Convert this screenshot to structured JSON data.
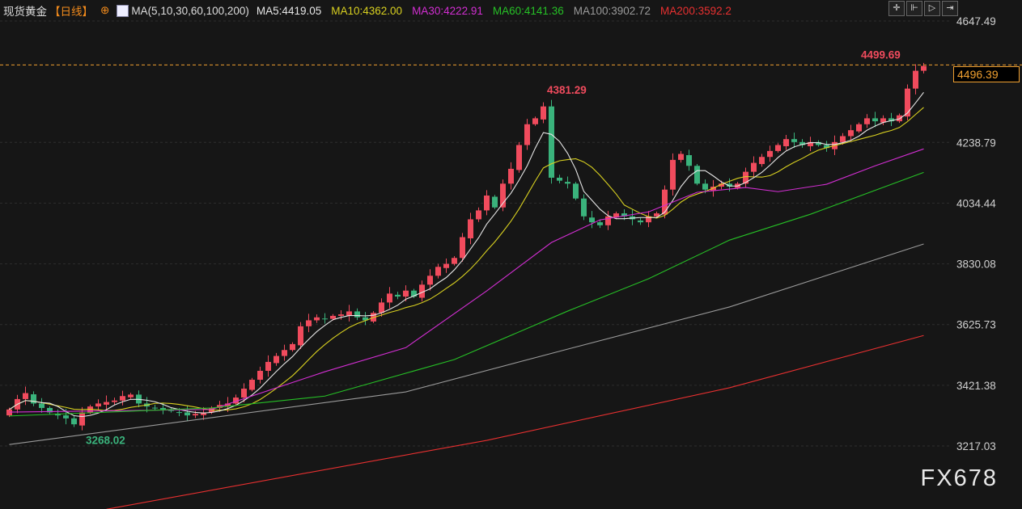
{
  "header": {
    "instrument": "现货黄金",
    "period": "【日线】",
    "ma_label": "MA(5,10,30,60,100,200)",
    "ma_values": [
      {
        "text": "MA5:4419.05",
        "color": "#e6e6e6"
      },
      {
        "text": "MA10:4362.00",
        "color": "#d8d020"
      },
      {
        "text": "MA30:4222.91",
        "color": "#d22ed2"
      },
      {
        "text": "MA60:4141.36",
        "color": "#26c026"
      },
      {
        "text": "MA100:3902.72",
        "color": "#9a9a9a"
      },
      {
        "text": "MA200:3592.2",
        "color": "#e83030"
      }
    ]
  },
  "toolbar": {
    "icons": [
      "crosshair-icon",
      "zoom-in-icon",
      "play-icon",
      "exit-icon"
    ],
    "glyphs": [
      "✛",
      "⊩",
      "▷",
      "⇥"
    ]
  },
  "watermark": "FX678",
  "chart_data": {
    "type": "candlestick",
    "colors": {
      "up": "#f04b5d",
      "down": "#3ab37c",
      "background": "#161616"
    },
    "y_ticks": [
      "4647.49",
      "4238.79",
      "4034.44",
      "3830.08",
      "3625.73",
      "3421.38",
      "3217.03"
    ],
    "ylim": [
      3217.03,
      4647.49
    ],
    "close": [
      3340,
      3375,
      3395,
      3360,
      3345,
      3330,
      3320,
      3310,
      3290,
      3330,
      3350,
      3360,
      3365,
      3370,
      3385,
      3390,
      3360,
      3350,
      3345,
      3340,
      3335,
      3330,
      3320,
      3325,
      3330,
      3345,
      3355,
      3360,
      3380,
      3410,
      3440,
      3470,
      3500,
      3520,
      3540,
      3560,
      3620,
      3640,
      3650,
      3645,
      3655,
      3660,
      3670,
      3650,
      3640,
      3665,
      3700,
      3730,
      3720,
      3740,
      3720,
      3760,
      3790,
      3820,
      3830,
      3850,
      3920,
      3980,
      4010,
      4060,
      4020,
      4100,
      4150,
      4230,
      4300,
      4320,
      4360,
      4120,
      4110,
      4100,
      4050,
      3990,
      3970,
      3960,
      3990,
      4000,
      3990,
      3980,
      3970,
      3990,
      4000,
      4080,
      4180,
      4200,
      4160,
      4100,
      4080,
      4090,
      4100,
      4090,
      4100,
      4140,
      4170,
      4190,
      4210,
      4230,
      4250,
      4240,
      4230,
      4240,
      4230,
      4220,
      4240,
      4260,
      4280,
      4300,
      4320,
      4310,
      4320,
      4310,
      4330,
      4420,
      4480,
      4496.39
    ],
    "ma_series": [
      {
        "name": "MA30",
        "color": "#d22ed2",
        "points": [
          [
            0,
            3331
          ],
          [
            25,
            3340
          ],
          [
            39,
            3467
          ],
          [
            49,
            3548
          ],
          [
            59,
            3739
          ],
          [
            67,
            3902
          ],
          [
            73,
            3978
          ],
          [
            79,
            4005
          ],
          [
            85,
            4071
          ],
          [
            91,
            4087
          ],
          [
            95,
            4073
          ],
          [
            101,
            4098
          ],
          [
            107,
            4160
          ],
          [
            113,
            4217
          ]
        ]
      },
      {
        "name": "MA60",
        "color": "#26c026",
        "points": [
          [
            0,
            3318
          ],
          [
            25,
            3345
          ],
          [
            39,
            3385
          ],
          [
            55,
            3508
          ],
          [
            69,
            3671
          ],
          [
            79,
            3780
          ],
          [
            89,
            3910
          ],
          [
            99,
            3997
          ],
          [
            113,
            4138
          ]
        ]
      },
      {
        "name": "MA100",
        "color": "#9a9a9a",
        "points": [
          [
            0,
            3222
          ],
          [
            49,
            3399
          ],
          [
            69,
            3543
          ],
          [
            89,
            3685
          ],
          [
            113,
            3897
          ]
        ]
      },
      {
        "name": "MA200",
        "color": "#e83030",
        "points": [
          [
            12,
            3004
          ],
          [
            59,
            3236
          ],
          [
            89,
            3413
          ],
          [
            113,
            3589
          ]
        ]
      }
    ],
    "annotations": [
      {
        "text": "4381.29",
        "index": 66,
        "value": 4381.29,
        "color": "#f04b5d"
      },
      {
        "text": "3268.02",
        "index": 9,
        "value": 3268.02,
        "color": "#3ab37c"
      },
      {
        "text": "4499.69",
        "index": 112,
        "value": 4499.69,
        "color": "#f04b5d"
      }
    ],
    "last_price": "4496.39"
  }
}
